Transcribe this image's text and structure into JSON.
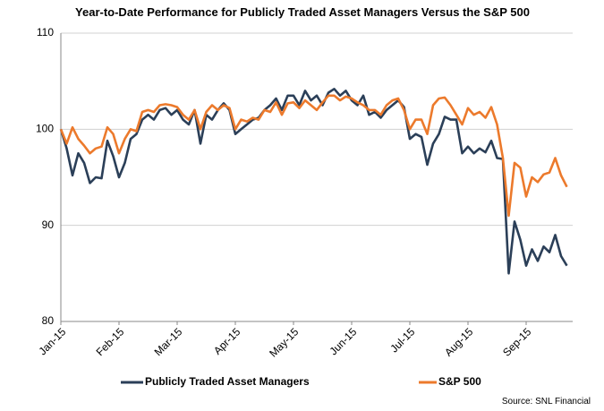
{
  "chart_data": {
    "type": "line",
    "title": "Year-to-Date Performance for Publicly Traded Asset Managers Versus the S&P 500",
    "source": "Source: SNL Financial",
    "categories": [
      "Jan-15",
      null,
      null,
      null,
      null,
      null,
      null,
      null,
      null,
      null,
      "Feb-15",
      null,
      null,
      null,
      null,
      null,
      null,
      null,
      null,
      null,
      "Mar-15",
      null,
      null,
      null,
      null,
      null,
      null,
      null,
      null,
      null,
      "Apr-15",
      null,
      null,
      null,
      null,
      null,
      null,
      null,
      null,
      null,
      "May-15",
      null,
      null,
      null,
      null,
      null,
      null,
      null,
      null,
      null,
      "Jun-15",
      null,
      null,
      null,
      null,
      null,
      null,
      null,
      null,
      null,
      "Jul-15",
      null,
      null,
      null,
      null,
      null,
      null,
      null,
      null,
      null,
      "Aug-15",
      null,
      null,
      null,
      null,
      null,
      null,
      null,
      null,
      null,
      "Sep-15",
      null,
      null,
      null,
      null,
      null,
      null,
      null
    ],
    "series": [
      {
        "name": "Publicly Traded Asset Managers",
        "color": "#2b3f58",
        "values": [
          100,
          98,
          95.2,
          97.5,
          96.5,
          94.4,
          95,
          94.9,
          98.8,
          97.2,
          95,
          96.5,
          99,
          99.5,
          101,
          101.5,
          101,
          102,
          102.2,
          101.5,
          102,
          101,
          100.5,
          102,
          98.5,
          101.5,
          101,
          102,
          102.7,
          102,
          99.5,
          100,
          100.5,
          101,
          101.2,
          102,
          102.5,
          103.2,
          102,
          103.5,
          103.5,
          102.5,
          104,
          103,
          103.5,
          102.5,
          103.8,
          104.2,
          103.5,
          104,
          103,
          102.5,
          103.5,
          101.5,
          101.8,
          101.2,
          102,
          102.5,
          103,
          102.3,
          99,
          99.5,
          99.2,
          96.3,
          98.5,
          99.5,
          101.3,
          101,
          101,
          97.5,
          98.2,
          97.5,
          98,
          97.6,
          98.8,
          97,
          96.9,
          85,
          90.4,
          88.5,
          85.8,
          87.5,
          86.3,
          87.8,
          87.2,
          89,
          86.8,
          85.8
        ]
      },
      {
        "name": "S&P 500",
        "color": "#ec7a2c",
        "values": [
          100,
          98.5,
          100.2,
          99,
          98.3,
          97.5,
          98,
          98.2,
          100.2,
          99.5,
          97.5,
          99,
          100,
          99.8,
          101.8,
          102,
          101.8,
          102.5,
          102.6,
          102.5,
          102.3,
          101.5,
          101,
          102,
          100,
          101.8,
          102.5,
          102,
          102.5,
          102.2,
          100,
          101,
          100.8,
          101.2,
          101,
          102,
          101.8,
          102.8,
          101.5,
          102.7,
          102.8,
          102.2,
          103,
          102.5,
          102,
          102.8,
          103.5,
          103.5,
          103,
          103.4,
          103.2,
          102.8,
          102.5,
          102,
          102,
          101.5,
          102.5,
          103,
          103.2,
          102,
          100,
          101,
          101,
          99.5,
          102.5,
          103.2,
          103.3,
          102.5,
          101.5,
          100.5,
          102.2,
          101.5,
          101.8,
          101.2,
          102.3,
          100.5,
          97,
          91,
          96.5,
          96,
          93,
          95,
          94.5,
          95.3,
          95.5,
          97,
          95.2,
          94
        ]
      }
    ],
    "ylim": [
      80,
      110
    ],
    "yticks": [
      80,
      90,
      100,
      110
    ],
    "grid": true
  }
}
